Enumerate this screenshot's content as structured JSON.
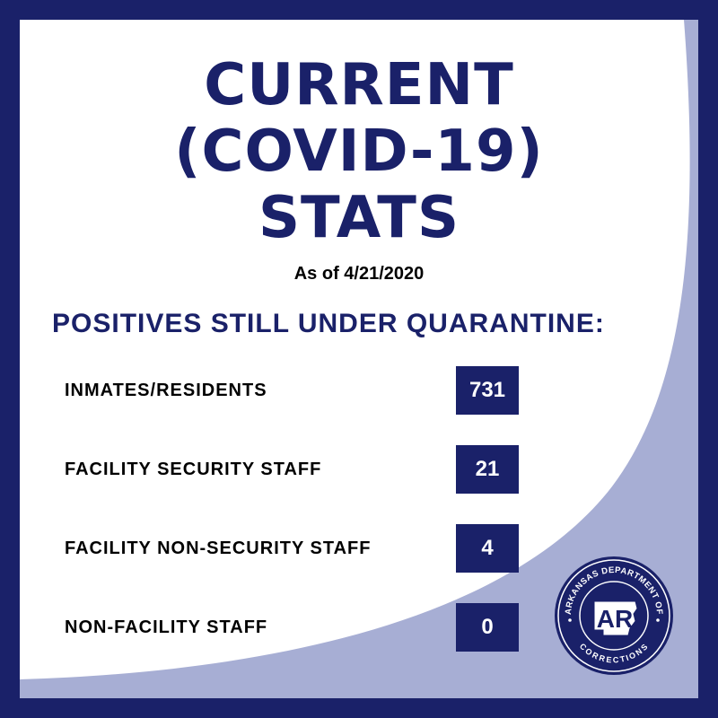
{
  "title_lines": [
    "CURRENT",
    "(COVID-19)",
    "STATS"
  ],
  "as_of": "As of 4/21/2020",
  "subtitle": "POSITIVES STILL UNDER QUARANTINE:",
  "rows": [
    {
      "label": "INMATES/RESIDENTS",
      "value": "731"
    },
    {
      "label": "FACILITY SECURITY STAFF",
      "value": "21"
    },
    {
      "label": "FACILITY NON-SECURITY STAFF",
      "value": "4"
    },
    {
      "label": "NON-FACILITY STAFF",
      "value": "0"
    }
  ],
  "seal": {
    "top_text": "ARKANSAS DEPARTMENT OF",
    "bottom_text": "CORRECTIONS",
    "monogram": "AR"
  },
  "colors": {
    "navy": "#1a2169",
    "lavender": "#a7aed4",
    "white": "#ffffff"
  }
}
